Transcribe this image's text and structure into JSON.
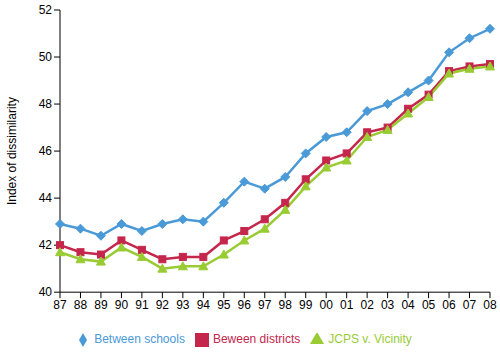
{
  "chart_data": {
    "type": "line",
    "y_label": "Index of dissimilarity",
    "categories": [
      "87",
      "88",
      "89",
      "90",
      "91",
      "92",
      "93",
      "94",
      "95",
      "96",
      "97",
      "98",
      "99",
      "00",
      "01",
      "02",
      "03",
      "04",
      "05",
      "06",
      "07",
      "08"
    ],
    "series": [
      {
        "name": "Between schools",
        "color": "#4a9ad8",
        "marker": "diamond",
        "values": [
          42.9,
          42.7,
          42.4,
          42.9,
          42.6,
          42.9,
          43.1,
          43.0,
          43.8,
          44.7,
          44.4,
          44.9,
          45.9,
          46.6,
          46.8,
          47.7,
          48.0,
          48.5,
          49.0,
          50.2,
          50.8,
          51.2
        ]
      },
      {
        "name": "Beween districts",
        "color": "#c5264c",
        "marker": "square",
        "values": [
          42.0,
          41.7,
          41.6,
          42.2,
          41.8,
          41.4,
          41.5,
          41.5,
          42.2,
          42.6,
          43.1,
          43.8,
          44.8,
          45.6,
          45.9,
          46.8,
          47.0,
          47.8,
          48.4,
          49.4,
          49.6,
          49.7
        ]
      },
      {
        "name": "JCPS v. Vicinity",
        "color": "#99cc33",
        "marker": "triangle",
        "values": [
          41.7,
          41.4,
          41.3,
          41.9,
          41.5,
          41.0,
          41.1,
          41.1,
          41.6,
          42.2,
          42.7,
          43.5,
          44.5,
          45.3,
          45.6,
          46.6,
          46.9,
          47.6,
          48.3,
          49.3,
          49.5,
          49.6
        ]
      }
    ],
    "ylim": [
      40,
      52
    ],
    "yticks": [
      40,
      42,
      44,
      46,
      48,
      50,
      52
    ],
    "grid": false,
    "legend": "bottom"
  }
}
